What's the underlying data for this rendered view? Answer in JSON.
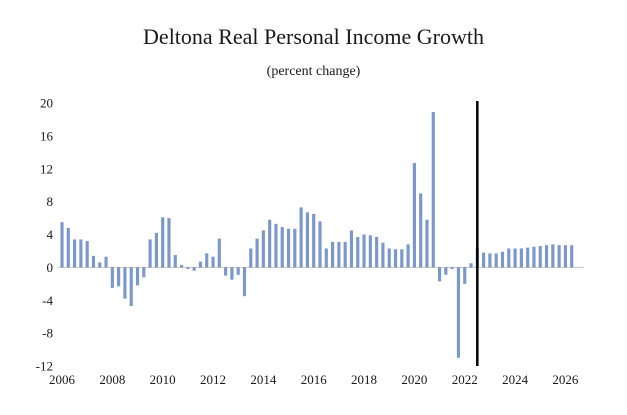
{
  "chart_data": {
    "type": "bar",
    "title": "Deltona Real Personal Income Growth",
    "subtitle": "(percent change)",
    "xlabel": "",
    "ylabel": "",
    "ylim": [
      -12,
      20
    ],
    "yticks": [
      20,
      16,
      12,
      8,
      4,
      0,
      -4,
      -8,
      -12
    ],
    "xlim": [
      2006,
      2026.5
    ],
    "xticks": [
      2006,
      2008,
      2010,
      2012,
      2014,
      2016,
      2018,
      2020,
      2022,
      2024,
      2026
    ],
    "forecast_divider_x": 2022.5,
    "bar_color": "#7b98cc",
    "grid": false,
    "x": [
      2006.0,
      2006.25,
      2006.5,
      2006.75,
      2007.0,
      2007.25,
      2007.5,
      2007.75,
      2008.0,
      2008.25,
      2008.5,
      2008.75,
      2009.0,
      2009.25,
      2009.5,
      2009.75,
      2010.0,
      2010.25,
      2010.5,
      2010.75,
      2011.0,
      2011.25,
      2011.5,
      2011.75,
      2012.0,
      2012.25,
      2012.5,
      2012.75,
      2013.0,
      2013.25,
      2013.5,
      2013.75,
      2014.0,
      2014.25,
      2014.5,
      2014.75,
      2015.0,
      2015.25,
      2015.5,
      2015.75,
      2016.0,
      2016.25,
      2016.5,
      2016.75,
      2017.0,
      2017.25,
      2017.5,
      2017.75,
      2018.0,
      2018.25,
      2018.5,
      2018.75,
      2019.0,
      2019.25,
      2019.5,
      2019.75,
      2020.0,
      2020.25,
      2020.5,
      2020.75,
      2021.0,
      2021.25,
      2021.5,
      2021.75,
      2022.0,
      2022.25,
      2022.5,
      2022.75,
      2023.0,
      2023.25,
      2023.5,
      2023.75,
      2024.0,
      2024.25,
      2024.5,
      2024.75,
      2025.0,
      2025.25,
      2025.5,
      2025.75,
      2026.0,
      2026.25
    ],
    "values": [
      5.5,
      4.8,
      3.4,
      3.4,
      3.2,
      1.4,
      0.6,
      1.3,
      -2.5,
      -2.3,
      -3.8,
      -4.7,
      -2.2,
      -1.2,
      3.4,
      4.2,
      6.1,
      6.0,
      1.5,
      0.3,
      -0.2,
      -0.4,
      0.7,
      1.7,
      1.3,
      3.5,
      -1.0,
      -1.5,
      -0.9,
      -3.5,
      2.3,
      3.5,
      4.5,
      5.8,
      5.3,
      4.9,
      4.7,
      4.7,
      7.3,
      6.7,
      6.5,
      5.6,
      2.3,
      3.1,
      3.1,
      3.1,
      4.5,
      3.7,
      4.0,
      3.9,
      3.7,
      3.0,
      2.3,
      2.2,
      2.2,
      2.8,
      12.7,
      9.0,
      5.8,
      18.9,
      -1.7,
      -0.9,
      -0.2,
      -11.0,
      -2.0,
      0.5,
      2.3,
      1.8,
      1.7,
      1.7,
      1.9,
      2.3,
      2.3,
      2.3,
      2.4,
      2.5,
      2.6,
      2.7,
      2.8,
      2.7,
      2.7,
      2.7
    ]
  }
}
